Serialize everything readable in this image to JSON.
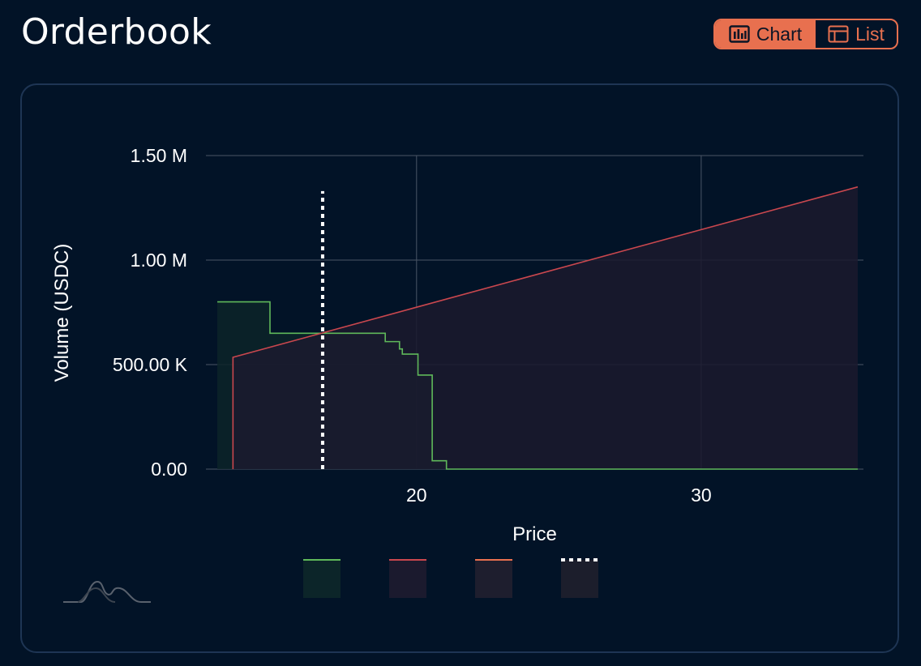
{
  "header": {
    "title": "Orderbook"
  },
  "view_toggle": {
    "chart_label": "Chart",
    "list_label": "List",
    "active": "chart",
    "chart_icon": "bar-chart-icon",
    "list_icon": "table-icon",
    "accent_color": "#e8704f"
  },
  "logo": {
    "icon": "mountains-logo-icon"
  },
  "chart_data": {
    "type": "area",
    "xlabel": "Price",
    "ylabel": "Volume (USDC)",
    "xlim": [
      12.6,
      35.7
    ],
    "ylim": [
      0,
      1500000
    ],
    "x_ticks": [
      20,
      30
    ],
    "x_tick_labels": [
      "20",
      "30"
    ],
    "y_ticks": [
      0,
      500000,
      1000000,
      1500000
    ],
    "y_tick_labels": [
      "0.00",
      "500.00 K",
      "1.00 M",
      "1.50 M"
    ],
    "grid": true,
    "series": [
      {
        "style": "step",
        "color": "#5fb85a",
        "fill": "#0c2529",
        "x": [
          13.0,
          14.85,
          14.85,
          18.9,
          18.9,
          19.4,
          19.4,
          19.5,
          19.5,
          19.6,
          19.6,
          20.05,
          20.05,
          20.55,
          20.55,
          21.05,
          21.05,
          35.5
        ],
        "y": [
          800000,
          800000,
          650000,
          650000,
          610000,
          610000,
          575000,
          575000,
          550000,
          550000,
          550000,
          550000,
          450000,
          450000,
          40000,
          40000,
          0,
          0
        ]
      },
      {
        "style": "line",
        "color": "#c9474e",
        "fill": "#1b1a2e",
        "x": [
          13.55,
          13.55,
          35.5
        ],
        "y": [
          0,
          535000,
          1350000
        ]
      },
      {
        "style": "vline",
        "color": "#ffffff",
        "dashed": true,
        "x": [
          16.7,
          16.7
        ],
        "y": [
          0,
          1330000
        ]
      }
    ],
    "legend": {
      "position": "bottom",
      "entries": [
        {
          "line_color": "#5fb85a",
          "swatch_color": "#0c2529",
          "dashed": false
        },
        {
          "line_color": "#c9474e",
          "swatch_color": "#1b1a2e",
          "dashed": false
        },
        {
          "line_color": "#e8704f",
          "swatch_color": "#1e1e2e",
          "dashed": false
        },
        {
          "line_color": "#ffffff",
          "swatch_color": "#1c1e2c",
          "dashed": true
        }
      ]
    },
    "colors": {
      "grid": "#4a5566",
      "text": "#ffffff"
    }
  }
}
